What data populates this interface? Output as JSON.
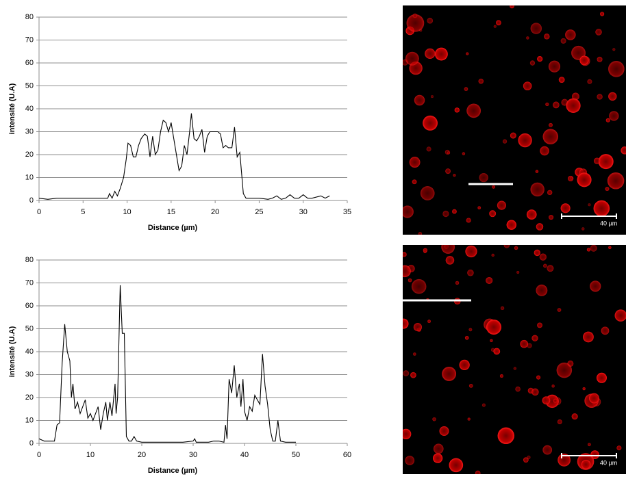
{
  "chart_data": [
    {
      "type": "line",
      "xlabel": "Distance (µm)",
      "ylabel": "intensité (U.A)",
      "color": "#000000",
      "grid": true,
      "xlim": [
        0,
        35
      ],
      "xticks": [
        0,
        5,
        10,
        15,
        20,
        25,
        30,
        35
      ],
      "ylim": [
        0,
        80
      ],
      "yticks": [
        0,
        10,
        20,
        30,
        40,
        50,
        60,
        70,
        80
      ],
      "x": [
        0,
        1,
        2,
        3,
        4,
        5,
        6,
        7,
        7.8,
        8,
        8.3,
        8.6,
        8.9,
        9.2,
        9.6,
        9.9,
        10.1,
        10.4,
        10.7,
        11,
        11.3,
        11.6,
        12,
        12.3,
        12.6,
        12.9,
        13.2,
        13.5,
        13.8,
        14.1,
        14.4,
        14.7,
        15,
        15.3,
        15.6,
        15.9,
        16.2,
        16.5,
        16.8,
        17.1,
        17.3,
        17.6,
        17.9,
        18.2,
        18.5,
        18.8,
        19.1,
        19.4,
        19.7,
        20,
        20.3,
        20.6,
        20.9,
        21.2,
        21.5,
        21.9,
        22.2,
        22.5,
        22.8,
        23,
        23.2,
        23.5,
        24,
        25,
        26,
        26.5,
        27,
        27.5,
        28,
        28.5,
        29,
        29.5,
        30,
        30.5,
        31,
        32,
        32.5,
        33
      ],
      "values": [
        1,
        0.5,
        1,
        1,
        1,
        1,
        1,
        1,
        1,
        3,
        1,
        4,
        2,
        5,
        10,
        18,
        25,
        24,
        19,
        19,
        24,
        27,
        29,
        28,
        19,
        28,
        20,
        22,
        30,
        35,
        34,
        30,
        34,
        27,
        20,
        13,
        15,
        24,
        20,
        30,
        38,
        27,
        26,
        28,
        31,
        21,
        28,
        30,
        30,
        30,
        30,
        29,
        23,
        24,
        23,
        23,
        32,
        19,
        21,
        12,
        3,
        1,
        1,
        1,
        0.5,
        1,
        2,
        0.5,
        1,
        2.5,
        1,
        1,
        2.5,
        1,
        1,
        2,
        1,
        2
      ]
    },
    {
      "type": "line",
      "xlabel": "Distance (µm)",
      "ylabel": "intensité (U.A)",
      "color": "#000000",
      "grid": true,
      "xlim": [
        0,
        60
      ],
      "xticks": [
        0,
        10,
        20,
        30,
        40,
        50,
        60
      ],
      "ylim": [
        0,
        80
      ],
      "yticks": [
        0,
        10,
        20,
        30,
        40,
        50,
        60,
        70,
        80
      ],
      "x": [
        0,
        1,
        2,
        3,
        3.5,
        4,
        4.5,
        5,
        5.5,
        6,
        6.3,
        6.6,
        7,
        7.5,
        8,
        8.5,
        9,
        9.5,
        10,
        10.5,
        11,
        11.5,
        12,
        12.5,
        13,
        13.3,
        13.8,
        14.2,
        14.8,
        15,
        15.3,
        15.8,
        16.2,
        16.6,
        17,
        17.5,
        18,
        18.5,
        19,
        20,
        22,
        25,
        28,
        30,
        30.3,
        30.6,
        33,
        34,
        35,
        36,
        36.3,
        36.6,
        37,
        37.5,
        38,
        38.5,
        39,
        39.3,
        39.7,
        40,
        40.5,
        41,
        41.5,
        42,
        42.5,
        43,
        43.5,
        44,
        44.5,
        45,
        45.5,
        46,
        46.5,
        47,
        48,
        50
      ],
      "values": [
        2,
        1,
        1,
        1,
        8,
        9,
        35,
        52,
        40,
        36,
        20,
        26,
        15,
        18,
        13,
        16,
        19,
        11,
        13,
        10,
        13,
        16,
        6,
        13,
        18,
        10,
        18,
        12,
        26,
        13,
        20,
        69,
        48,
        48,
        3,
        1,
        1,
        3,
        1,
        0.5,
        0.5,
        0.5,
        0.5,
        1,
        2,
        0.5,
        0.5,
        1,
        1,
        0.5,
        8,
        2,
        28,
        22,
        34,
        20,
        26,
        16,
        28,
        14,
        10,
        16,
        14,
        21,
        19,
        17,
        39,
        25,
        17,
        6,
        1,
        1,
        10,
        1,
        0.5,
        0.5
      ]
    }
  ],
  "images": [
    {
      "scale_bar_label": "40 µm"
    },
    {
      "scale_bar_label": "40 µm"
    }
  ]
}
